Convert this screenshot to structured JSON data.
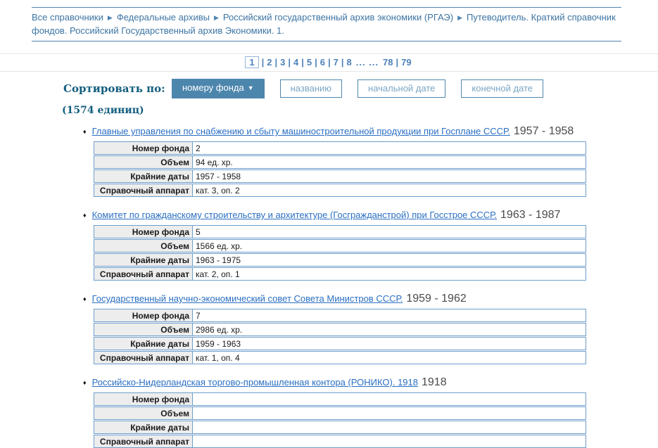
{
  "breadcrumb": {
    "separator": "▶",
    "items": [
      "Все справочники",
      "Федеральные архивы",
      "Российский государственный архив экономики (РГАЭ)",
      "Путеводитель. Краткий справочник фондов. Российский Государственный архив Экономики. 1."
    ]
  },
  "pagination": {
    "separator": "|",
    "current": "1",
    "pages": [
      "2",
      "3",
      "4",
      "5",
      "6",
      "7",
      "8"
    ],
    "ellipsis": "... ...",
    "tail_pages": [
      "78",
      "79"
    ]
  },
  "sort": {
    "label": "Сортировать по:",
    "count": "(1574 единиц)",
    "arrow": "▼",
    "buttons": [
      {
        "label": "номеру фонда"
      },
      {
        "label": "названию"
      },
      {
        "label": "начальной дате"
      },
      {
        "label": "конечной дате"
      }
    ]
  },
  "fields": {
    "number": "Номер фонда",
    "volume": "Объем",
    "dates": "Крайние даты",
    "reference": "Справочный аппарат"
  },
  "bullet": "♦",
  "items": [
    {
      "title": "Главные управления по снабжению и сбыту машиностроительной продукции при Госплане СССР.",
      "dates_suffix": "1957 - 1958",
      "number": "2",
      "volume": "94 ед. хр.",
      "extreme_dates": "1957 - 1958",
      "reference": "кат. 3, оп. 2"
    },
    {
      "title": "Комитет по гражданскому строительству и архитектуре (Госгражданстрой) при Госстрое СССР.",
      "dates_suffix": "1963 - 1987",
      "number": "5",
      "volume": "1566 ед. хр.",
      "extreme_dates": "1963 - 1975",
      "reference": "кат. 2, оп. 1"
    },
    {
      "title": "Государственный научно-экономический совет Совета Министров СССР.",
      "dates_suffix": "1959 - 1962",
      "number": "7",
      "volume": "2986 ед. хр.",
      "extreme_dates": "1959 - 1963",
      "reference": "кат. 1, оп. 4"
    },
    {
      "title": "Российско-Нидерландская торгово-промышленная контора (РОНИКО). 1918",
      "dates_suffix": "1918",
      "number": "",
      "volume": "",
      "extreme_dates": "",
      "reference": ""
    }
  ]
}
